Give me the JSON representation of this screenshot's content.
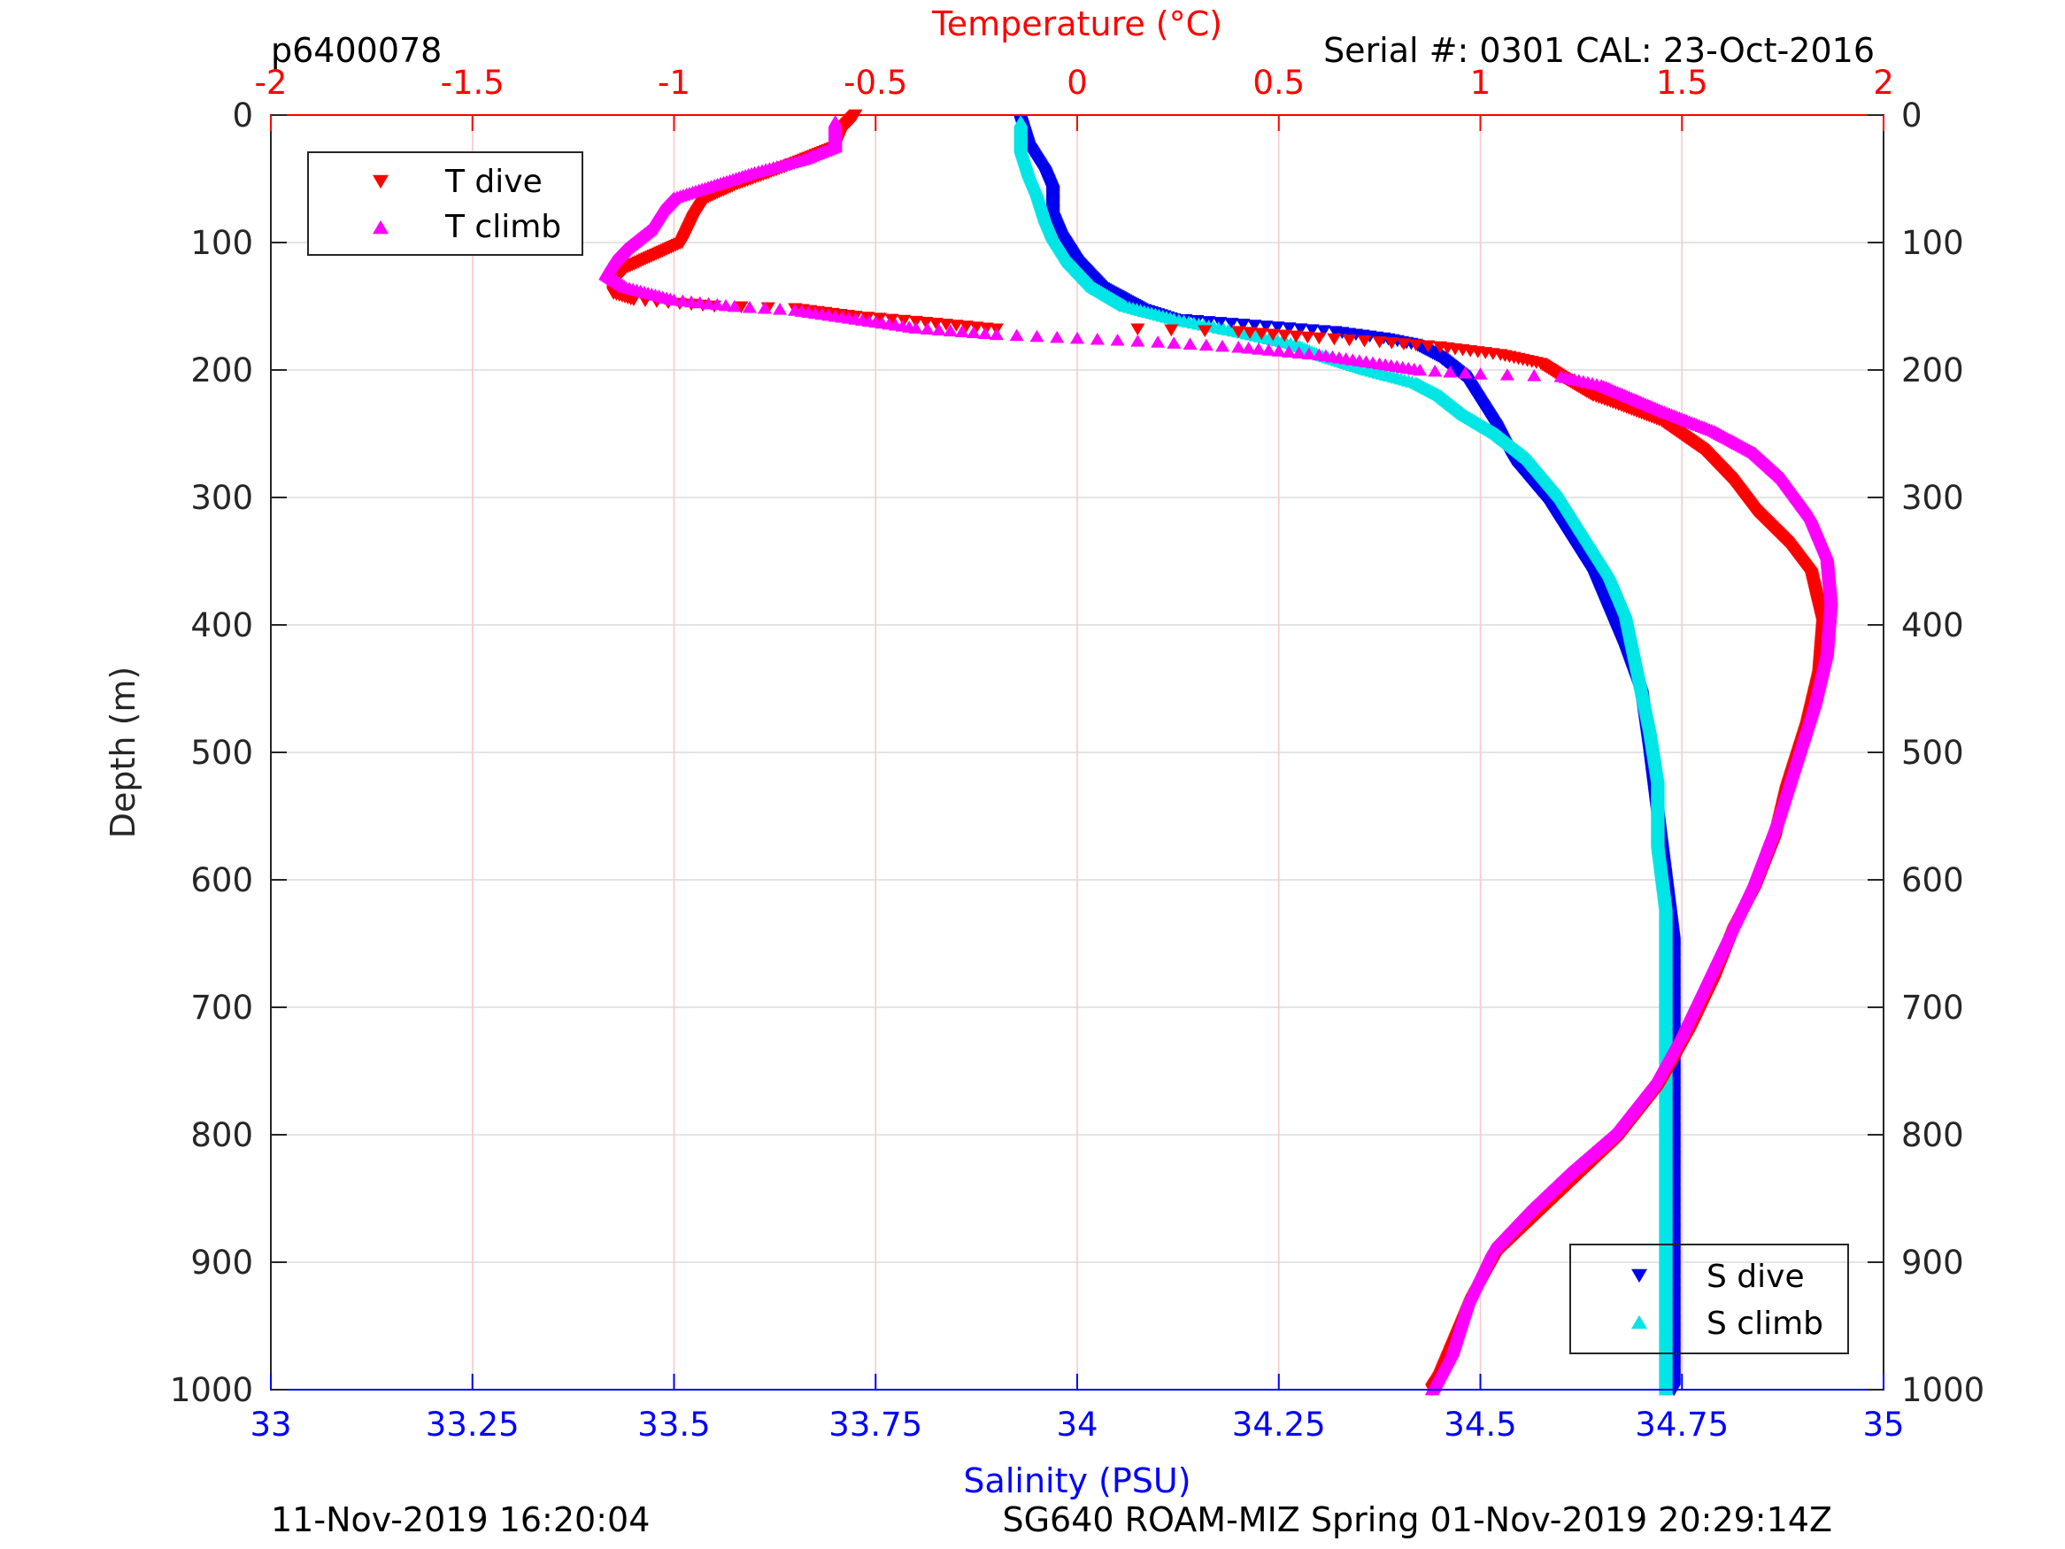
{
  "header": {
    "profile_id": "p6400078",
    "serial_cal": "Serial #: 0301  CAL: 23-Oct-2016"
  },
  "footer": {
    "plot_time": "11-Nov-2019 16:20:04",
    "mission": "SG640 ROAM-MIZ Spring 01-Nov-2019 20:29:14Z"
  },
  "colors": {
    "temp_axis": "#ff0000",
    "sal_axis": "#0000ff",
    "t_dive": "#ff0000",
    "t_climb": "#ff00ff",
    "s_dive": "#0000ee",
    "s_climb": "#00e5e5"
  },
  "chart_data": {
    "type": "scatter",
    "ylabel": "Depth (m)",
    "y_reversed": true,
    "ylim": [
      0,
      1000
    ],
    "yticks": [
      "0",
      "100",
      "200",
      "300",
      "400",
      "500",
      "600",
      "700",
      "800",
      "900",
      "1000"
    ],
    "top_axis": {
      "label": "Temperature (°C)",
      "xlim": [
        -2,
        2
      ],
      "ticks": [
        "-2",
        "-1.5",
        "-1",
        "-0.5",
        "0",
        "0.5",
        "1",
        "1.5",
        "2"
      ]
    },
    "bottom_axis": {
      "label": "Salinity (PSU)",
      "xlim": [
        33,
        35
      ],
      "ticks": [
        "33",
        "33.25",
        "33.5",
        "33.75",
        "34",
        "34.25",
        "34.5",
        "34.75",
        "35"
      ]
    },
    "grid": true,
    "legend_temperature": {
      "placement": "top-left",
      "entries": [
        "T dive",
        "T climb"
      ]
    },
    "legend_salinity": {
      "placement": "bottom-right",
      "entries": [
        "S dive",
        "S climb"
      ]
    },
    "series": [
      {
        "name": "T dive",
        "axis": "temperature",
        "marker": "triangle-down",
        "points": [
          [
            -0.55,
            0
          ],
          [
            -0.58,
            10
          ],
          [
            -0.6,
            25
          ],
          [
            -0.72,
            40
          ],
          [
            -0.85,
            55
          ],
          [
            -0.92,
            65
          ],
          [
            -0.95,
            80
          ],
          [
            -0.98,
            100
          ],
          [
            -1.05,
            110
          ],
          [
            -1.12,
            120
          ],
          [
            -1.15,
            130
          ],
          [
            -1.15,
            140
          ],
          [
            -1.1,
            145
          ],
          [
            -0.9,
            150
          ],
          [
            -0.7,
            152
          ],
          [
            -0.55,
            158
          ],
          [
            -0.4,
            162
          ],
          [
            -0.3,
            165
          ],
          [
            -0.2,
            168
          ],
          [
            0.15,
            168
          ],
          [
            0.4,
            170
          ],
          [
            0.6,
            175
          ],
          [
            0.75,
            178
          ],
          [
            0.9,
            182
          ],
          [
            1.05,
            188
          ],
          [
            1.15,
            195
          ],
          [
            1.2,
            205
          ],
          [
            1.28,
            220
          ],
          [
            1.35,
            228
          ],
          [
            1.45,
            240
          ],
          [
            1.55,
            262
          ],
          [
            1.62,
            285
          ],
          [
            1.68,
            310
          ],
          [
            1.76,
            335
          ],
          [
            1.82,
            360
          ],
          [
            1.85,
            400
          ],
          [
            1.84,
            440
          ],
          [
            1.81,
            480
          ],
          [
            1.76,
            530
          ],
          [
            1.73,
            570
          ],
          [
            1.68,
            610
          ],
          [
            1.63,
            640
          ],
          [
            1.58,
            680
          ],
          [
            1.52,
            720
          ],
          [
            1.45,
            760
          ],
          [
            1.35,
            800
          ],
          [
            1.25,
            830
          ],
          [
            1.15,
            860
          ],
          [
            1.05,
            890
          ],
          [
            0.98,
            930
          ],
          [
            0.94,
            960
          ],
          [
            0.9,
            990
          ],
          [
            0.88,
            1000
          ]
        ]
      },
      {
        "name": "T climb",
        "axis": "temperature",
        "marker": "triangle-up",
        "points": [
          [
            -0.6,
            5
          ],
          [
            -0.6,
            25
          ],
          [
            -0.68,
            35
          ],
          [
            -0.8,
            45
          ],
          [
            -0.9,
            55
          ],
          [
            -1.0,
            65
          ],
          [
            -1.03,
            75
          ],
          [
            -1.06,
            90
          ],
          [
            -1.12,
            105
          ],
          [
            -1.15,
            115
          ],
          [
            -1.17,
            125
          ],
          [
            -1.12,
            135
          ],
          [
            -1.0,
            145
          ],
          [
            -0.85,
            150
          ],
          [
            -0.7,
            153
          ],
          [
            -0.55,
            160
          ],
          [
            -0.4,
            167
          ],
          [
            -0.2,
            172
          ],
          [
            0.0,
            175
          ],
          [
            0.2,
            178
          ],
          [
            0.4,
            182
          ],
          [
            0.6,
            188
          ],
          [
            0.75,
            195
          ],
          [
            0.85,
            200
          ],
          [
            1.0,
            203
          ],
          [
            1.2,
            205
          ],
          [
            1.3,
            212
          ],
          [
            1.45,
            232
          ],
          [
            1.58,
            248
          ],
          [
            1.68,
            265
          ],
          [
            1.75,
            285
          ],
          [
            1.82,
            315
          ],
          [
            1.86,
            345
          ],
          [
            1.87,
            380
          ],
          [
            1.86,
            420
          ],
          [
            1.83,
            460
          ],
          [
            1.79,
            500
          ],
          [
            1.74,
            550
          ],
          [
            1.68,
            600
          ],
          [
            1.62,
            640
          ],
          [
            1.56,
            680
          ],
          [
            1.5,
            720
          ],
          [
            1.43,
            760
          ],
          [
            1.33,
            800
          ],
          [
            1.22,
            830
          ],
          [
            1.12,
            860
          ],
          [
            1.03,
            890
          ],
          [
            0.97,
            930
          ],
          [
            0.93,
            970
          ],
          [
            0.88,
            1000
          ]
        ]
      },
      {
        "name": "S dive",
        "axis": "salinity",
        "marker": "triangle-down",
        "points": [
          [
            33.93,
            5
          ],
          [
            33.94,
            25
          ],
          [
            33.96,
            45
          ],
          [
            33.97,
            60
          ],
          [
            33.97,
            80
          ],
          [
            33.98,
            95
          ],
          [
            34.0,
            115
          ],
          [
            34.03,
            135
          ],
          [
            34.08,
            152
          ],
          [
            34.12,
            160
          ],
          [
            34.22,
            165
          ],
          [
            34.32,
            170
          ],
          [
            34.38,
            175
          ],
          [
            34.42,
            180
          ],
          [
            34.45,
            190
          ],
          [
            34.48,
            205
          ],
          [
            34.5,
            225
          ],
          [
            34.52,
            245
          ],
          [
            34.54,
            270
          ],
          [
            34.58,
            300
          ],
          [
            34.61,
            330
          ],
          [
            34.64,
            360
          ],
          [
            34.66,
            390
          ],
          [
            34.68,
            420
          ],
          [
            34.7,
            455
          ],
          [
            34.71,
            500
          ],
          [
            34.72,
            550
          ],
          [
            34.73,
            600
          ],
          [
            34.74,
            650
          ],
          [
            34.74,
            700
          ],
          [
            34.74,
            750
          ],
          [
            34.74,
            800
          ],
          [
            34.74,
            850
          ],
          [
            34.74,
            900
          ],
          [
            34.74,
            950
          ],
          [
            34.74,
            1000
          ]
        ]
      },
      {
        "name": "S climb",
        "axis": "salinity",
        "marker": "triangle-up",
        "points": [
          [
            33.93,
            5
          ],
          [
            33.93,
            25
          ],
          [
            33.94,
            45
          ],
          [
            33.95,
            60
          ],
          [
            33.96,
            80
          ],
          [
            33.97,
            95
          ],
          [
            33.99,
            115
          ],
          [
            34.02,
            135
          ],
          [
            34.06,
            150
          ],
          [
            34.12,
            160
          ],
          [
            34.2,
            170
          ],
          [
            34.27,
            180
          ],
          [
            34.3,
            188
          ],
          [
            34.36,
            200
          ],
          [
            34.42,
            210
          ],
          [
            34.45,
            220
          ],
          [
            34.48,
            235
          ],
          [
            34.52,
            250
          ],
          [
            34.56,
            270
          ],
          [
            34.6,
            300
          ],
          [
            34.63,
            330
          ],
          [
            34.66,
            360
          ],
          [
            34.68,
            390
          ],
          [
            34.69,
            420
          ],
          [
            34.7,
            450
          ],
          [
            34.71,
            480
          ],
          [
            34.72,
            520
          ],
          [
            34.72,
            570
          ],
          [
            34.73,
            620
          ],
          [
            34.73,
            680
          ],
          [
            34.73,
            740
          ],
          [
            34.73,
            800
          ],
          [
            34.73,
            860
          ],
          [
            34.73,
            920
          ],
          [
            34.73,
            980
          ],
          [
            34.73,
            1000
          ]
        ]
      }
    ]
  }
}
